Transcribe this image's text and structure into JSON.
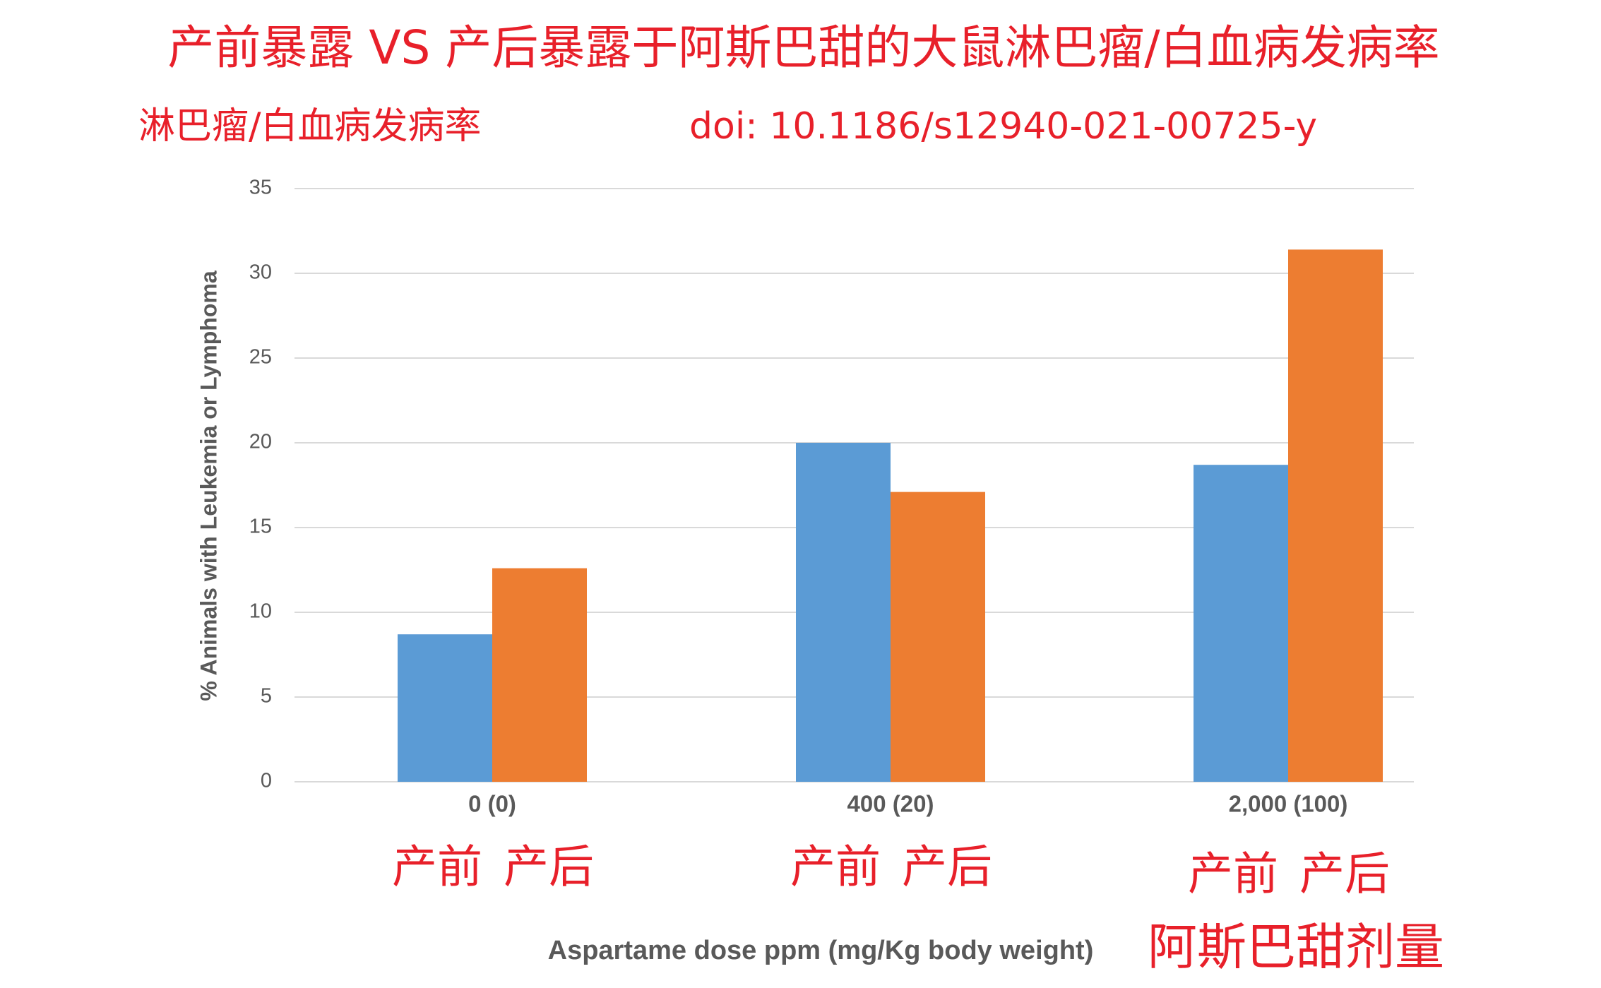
{
  "chart_data": {
    "type": "bar",
    "title": "产前暴露 VS 产后暴露于阿斯巴甜的大鼠淋巴瘤/白血病发病率",
    "subtitle": "淋巴瘤/白血病发病率",
    "doi": "doi: 10.1186/s12940-021-00725-y",
    "y_label": "% Animals with Leukemia or Lymphoma",
    "x_label": "Aspartame dose ppm (mg/Kg body weight)",
    "annotation": "阿斯巴甜剂量",
    "categories": [
      "0 (0)",
      "400 (20)",
      "2,000 (100)"
    ],
    "series": [
      {
        "name": "产前",
        "color": "#5b9bd5",
        "values": [
          8.7,
          20,
          18.7
        ]
      },
      {
        "name": "产后",
        "color": "#ed7d31",
        "values": [
          12.6,
          17.1,
          31.4
        ]
      }
    ],
    "ylim": [
      0,
      35
    ],
    "yticks": [
      0,
      5,
      10,
      15,
      20,
      25,
      30,
      35
    ],
    "grid": true
  }
}
